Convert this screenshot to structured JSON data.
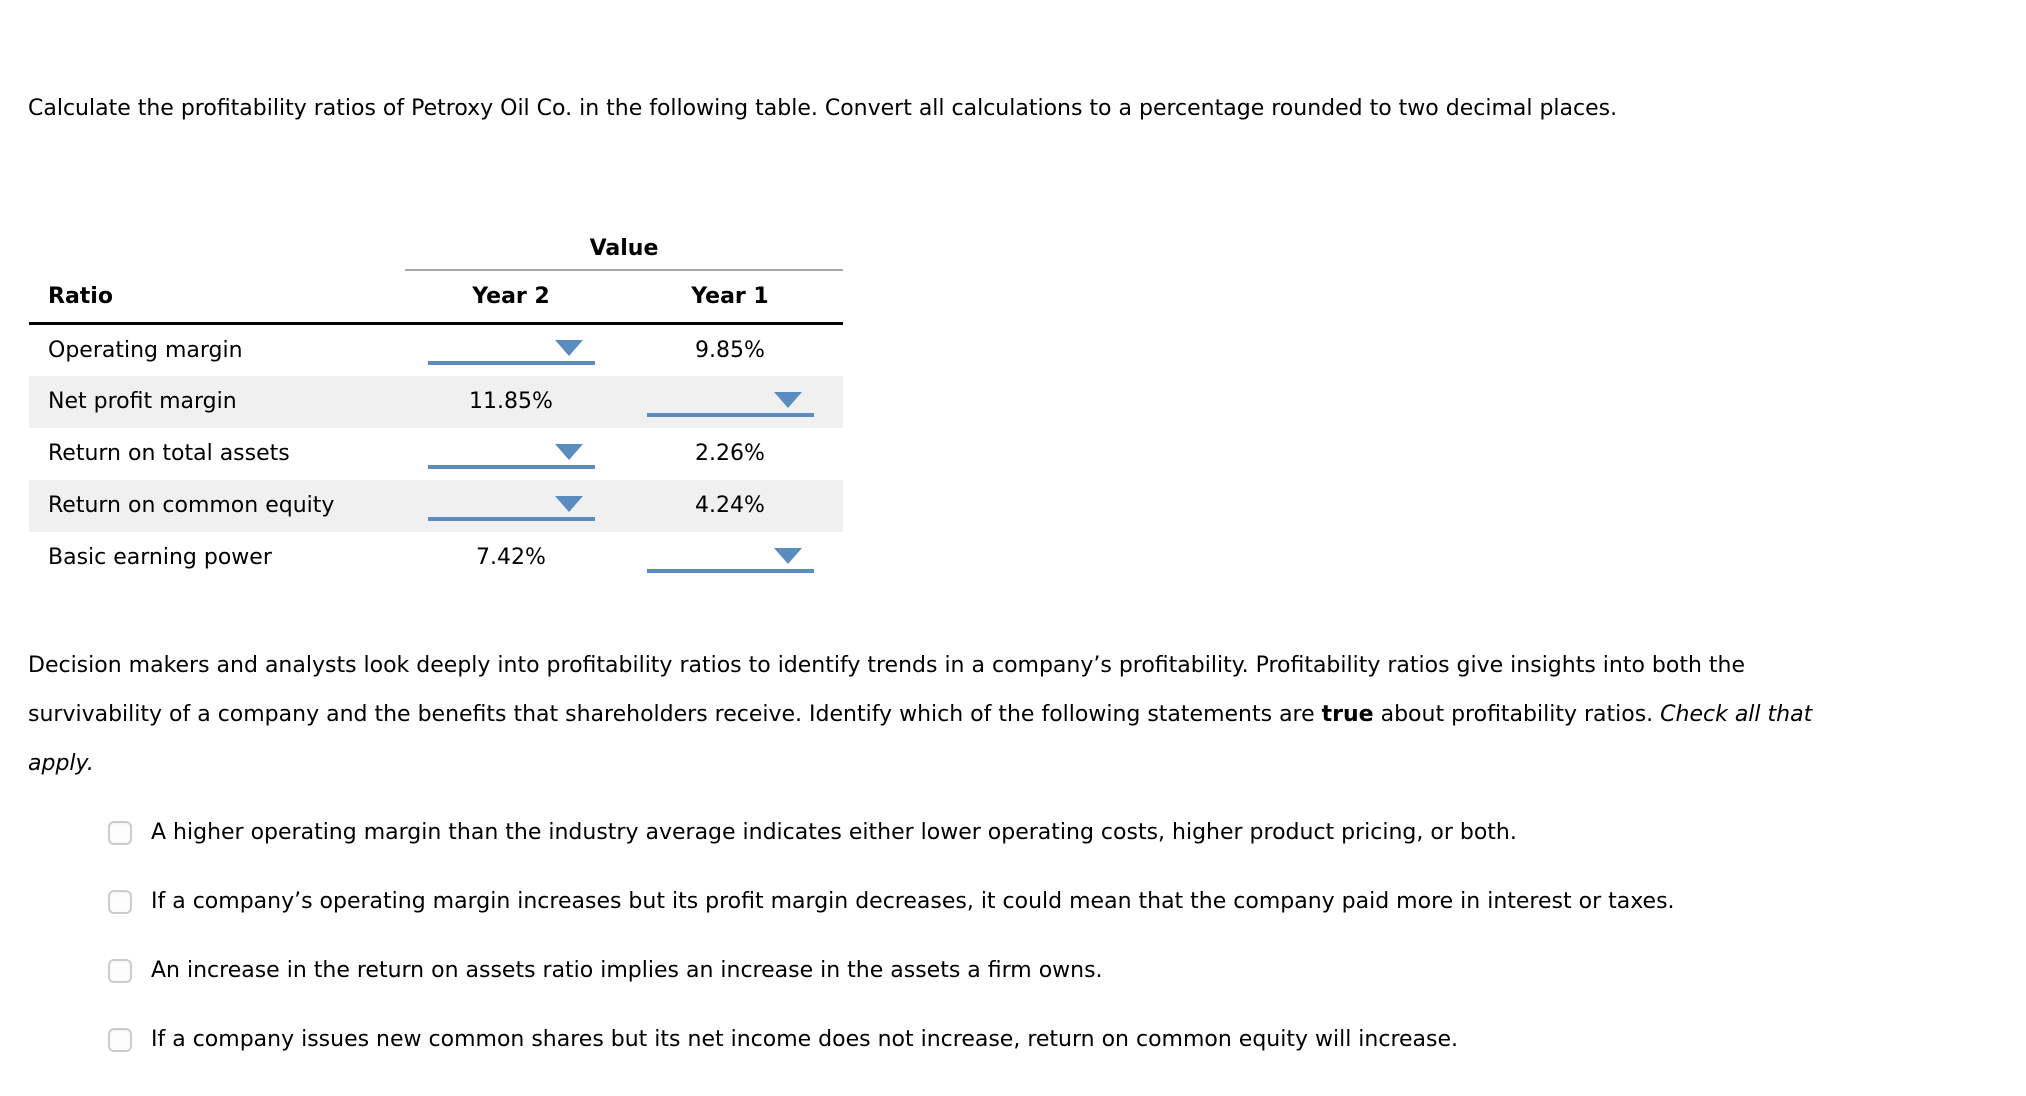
{
  "instruction": "Calculate the profitability ratios of Petroxy Oil Co. in the following table. Convert all calculations to a percentage rounded to two decimal places.",
  "table": {
    "value_header": "Value",
    "headers": {
      "ratio": "Ratio",
      "year2": "Year 2",
      "year1": "Year 1"
    },
    "rows": [
      {
        "ratio": "Operating margin",
        "year2": "",
        "year1": "9.85%"
      },
      {
        "ratio": "Net profit margin",
        "year2": "11.85%",
        "year1": ""
      },
      {
        "ratio": "Return on total assets",
        "year2": "",
        "year1": "2.26%"
      },
      {
        "ratio": "Return on common equity",
        "year2": "",
        "year1": "4.24%"
      },
      {
        "ratio": "Basic earning power",
        "year2": "7.42%",
        "year1": ""
      }
    ]
  },
  "explanation": {
    "text_before_bold": "Decision makers and analysts look deeply into profitability ratios to identify trends in a company’s profitability. Profitability ratios give insights into both the survivability of a company and the benefits that shareholders receive. Identify which of the following statements are",
    "bold_word": "true",
    "text_after_bold": "about profitability ratios.",
    "italic_instruction": "Check all that apply."
  },
  "choices": [
    "A higher operating margin than the industry average indicates either lower operating costs, higher product pricing, or both.",
    "If a company’s operating margin increases but its profit margin decreases, it could mean that the company paid more in interest or taxes.",
    "An increase in the return on assets ratio implies an increase in the assets a firm owns.",
    "If a company issues new common shares but its net income does not increase, return on common equity will increase."
  ],
  "icons": {
    "dropdown_arrow": "triangle-down"
  },
  "colors": {
    "accent_blue": "#5b8cbf",
    "alt_row_bg": "#f0f0f0",
    "value_rule_gray": "#aaaaaa",
    "header_rule_black": "#000000",
    "checkbox_border": "#cccccc"
  }
}
